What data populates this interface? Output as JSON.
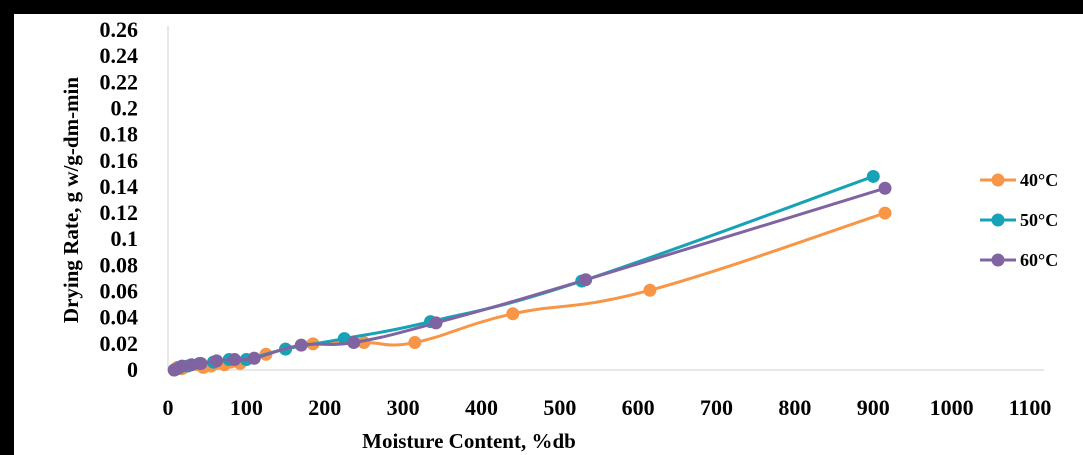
{
  "chart_data": {
    "type": "line",
    "xlabel": "Moisture Content, %db",
    "ylabel": "Drying Rate, g w/g-dm-min",
    "xlim": [
      0,
      1100
    ],
    "ylim": [
      0,
      0.26
    ],
    "x_ticks": [
      "0",
      "100",
      "200",
      "300",
      "400",
      "500",
      "600",
      "700",
      "800",
      "900",
      "1000",
      "1100"
    ],
    "y_ticks": [
      "0",
      "0.02",
      "0.04",
      "0.06",
      "0.08",
      "0.1",
      "0.12",
      "0.14",
      "0.16",
      "0.18",
      "0.2",
      "0.22",
      "0.24",
      "0.26"
    ],
    "grid": false,
    "legend_position": "right",
    "series": [
      {
        "name": "40°C",
        "color": "#F79646",
        "points": [
          [
            8,
            0
          ],
          [
            12,
            0.002
          ],
          [
            18,
            0.001
          ],
          [
            25,
            0.003
          ],
          [
            38,
            0.004
          ],
          [
            45,
            0.002
          ],
          [
            55,
            0.003
          ],
          [
            62,
            0.005
          ],
          [
            72,
            0.004
          ],
          [
            80,
            0.006
          ],
          [
            92,
            0.005
          ],
          [
            110,
            0.009
          ],
          [
            125,
            0.012
          ],
          [
            150,
            0.016
          ],
          [
            185,
            0.02
          ],
          [
            250,
            0.021
          ],
          [
            315,
            0.021
          ],
          [
            440,
            0.043
          ],
          [
            615,
            0.061
          ],
          [
            915,
            0.12
          ]
        ]
      },
      {
        "name": "50°C",
        "color": "#17A2B8",
        "points": [
          [
            8,
            0
          ],
          [
            15,
            0.002
          ],
          [
            25,
            0.003
          ],
          [
            40,
            0.005
          ],
          [
            58,
            0.006
          ],
          [
            78,
            0.008
          ],
          [
            100,
            0.008
          ],
          [
            150,
            0.016
          ],
          [
            225,
            0.024
          ],
          [
            335,
            0.037
          ],
          [
            528,
            0.068
          ],
          [
            900,
            0.148
          ]
        ]
      },
      {
        "name": "60°C",
        "color": "#8064A2",
        "points": [
          [
            8,
            0
          ],
          [
            12,
            0.001
          ],
          [
            18,
            0.003
          ],
          [
            30,
            0.004
          ],
          [
            42,
            0.005
          ],
          [
            62,
            0.007
          ],
          [
            85,
            0.008
          ],
          [
            110,
            0.009
          ],
          [
            170,
            0.019
          ],
          [
            237,
            0.021
          ],
          [
            342,
            0.036
          ],
          [
            533,
            0.069
          ],
          [
            915,
            0.139
          ]
        ]
      }
    ]
  }
}
